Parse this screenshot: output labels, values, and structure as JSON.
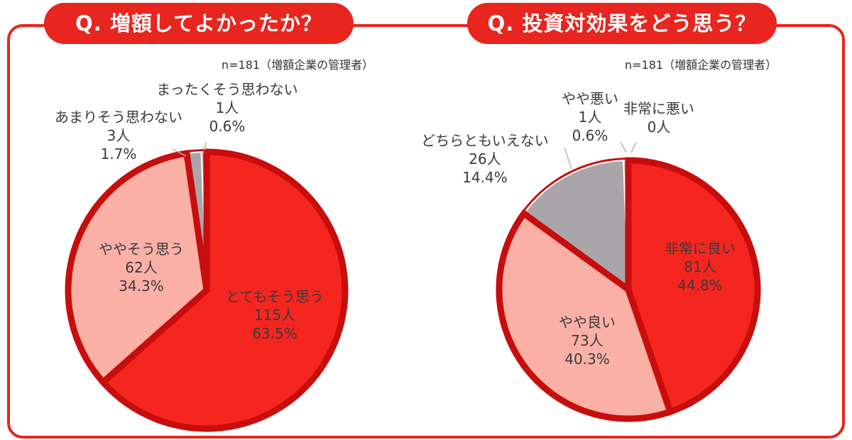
{
  "badges": {
    "q1": "Q. 増額してよかったか？",
    "q2": "Q. 投資対効果をどう思う？"
  },
  "notes": {
    "n1": "n=181（増額企業の管理者）",
    "n2": "n=181（増額企業の管理者）"
  },
  "colors": {
    "accent": "#e8251f",
    "border": "#c80d0d",
    "strong": "#f5261f",
    "light": "#fbb0a6",
    "gray": "#a8a6a8"
  },
  "chart_data": [
    {
      "type": "pie",
      "title": "Q. 増額してよかったか？",
      "slices": [
        {
          "label": "とてもそう思う",
          "count": "115人",
          "percent": "63.5%",
          "value": 63.5
        },
        {
          "label": "ややそう思う",
          "count": "62人",
          "percent": "34.3%",
          "value": 34.3
        },
        {
          "label": "あまりそう思わない",
          "count": "3人",
          "percent": "1.7%",
          "value": 1.7
        },
        {
          "label": "まったくそう思わない",
          "count": "1人",
          "percent": "0.6%",
          "value": 0.6
        }
      ]
    },
    {
      "type": "pie",
      "title": "Q. 投資対効果をどう思う？",
      "slices": [
        {
          "label": "非常に良い",
          "count": "81人",
          "percent": "44.8%",
          "value": 44.8
        },
        {
          "label": "やや良い",
          "count": "73人",
          "percent": "40.3%",
          "value": 40.3
        },
        {
          "label": "どちらともいえない",
          "count": "26人",
          "percent": "14.4%",
          "value": 14.4
        },
        {
          "label": "やや悪い",
          "count": "1人",
          "percent": "0.6%",
          "value": 0.6
        },
        {
          "label": "非常に悪い",
          "count": "0人",
          "percent": "",
          "value": 0
        }
      ]
    }
  ]
}
